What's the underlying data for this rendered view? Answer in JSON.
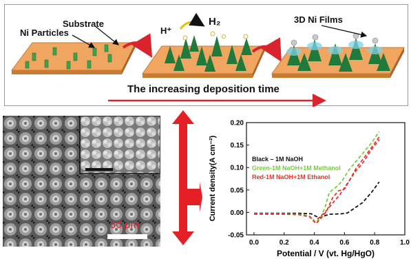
{
  "schematic": {
    "label_substrate": "Substrate",
    "label_particles": "Ni Particles",
    "label_hplus": "H⁺",
    "label_h2": "H₂",
    "label_films": "3D Ni Films",
    "caption": "The increasing deposition time"
  },
  "sem": {
    "scale_label": "50 μm"
  },
  "chart_data": {
    "type": "line",
    "xlabel": "Potential / V (vt. Hg/HgO)",
    "ylabel": "Current density(A cm⁻²)",
    "xlim": [
      -0.05,
      1.0
    ],
    "ylim": [
      -0.05,
      0.2
    ],
    "xticks": [
      "0.0",
      "0.2",
      "0.4",
      "0.6",
      "0.8",
      "1.0"
    ],
    "yticks": [
      "-0.05",
      "0.00",
      "0.05",
      "0.10",
      "0.15",
      "0.20"
    ],
    "legend": [
      {
        "text": "Black – 1M NaOH",
        "color": "#111111"
      },
      {
        "text": "Green-1M NaOH+1M Methanol",
        "color": "#7ac943"
      },
      {
        "text": "Red-1M NaOH+1M Ethanol",
        "color": "#e8332b"
      }
    ],
    "series": [
      {
        "name": "Black – 1M NaOH",
        "color": "#111111",
        "x": [
          0.0,
          0.1,
          0.2,
          0.3,
          0.38,
          0.43,
          0.5,
          0.58,
          0.62,
          0.66,
          0.72,
          0.78,
          0.83
        ],
        "y": [
          -0.002,
          -0.002,
          -0.002,
          -0.002,
          -0.003,
          -0.012,
          -0.004,
          -0.003,
          -0.001,
          0.008,
          0.022,
          0.045,
          0.068
        ]
      },
      {
        "name": "Green-1M NaOH+1M Methanol",
        "color": "#7ac943",
        "x": [
          0.0,
          0.1,
          0.2,
          0.3,
          0.37,
          0.41,
          0.44,
          0.47,
          0.5,
          0.54,
          0.58,
          0.63,
          0.68,
          0.73,
          0.78,
          0.83
        ],
        "y": [
          -0.003,
          -0.003,
          -0.003,
          -0.004,
          -0.008,
          -0.022,
          -0.012,
          0.01,
          0.045,
          0.055,
          0.068,
          0.095,
          0.115,
          0.135,
          0.155,
          0.18
        ]
      },
      {
        "name": "Red-1M NaOH+1M Ethanol",
        "color": "#e8332b",
        "x": [
          0.0,
          0.1,
          0.2,
          0.3,
          0.37,
          0.41,
          0.44,
          0.48,
          0.52,
          0.56,
          0.6,
          0.64,
          0.68,
          0.73,
          0.78,
          0.83
        ],
        "y": [
          -0.004,
          -0.004,
          -0.004,
          -0.005,
          -0.01,
          -0.025,
          -0.015,
          0.002,
          0.032,
          0.048,
          0.052,
          0.075,
          0.1,
          0.122,
          0.145,
          0.168
        ]
      },
      {
        "name": "",
        "color": "#e8332b",
        "x": [
          0.42,
          0.47,
          0.52,
          0.57,
          0.62,
          0.67,
          0.72,
          0.78,
          0.83
        ],
        "y": [
          -0.015,
          0.0,
          0.02,
          0.04,
          0.065,
          0.09,
          0.11,
          0.14,
          0.162
        ]
      }
    ]
  }
}
